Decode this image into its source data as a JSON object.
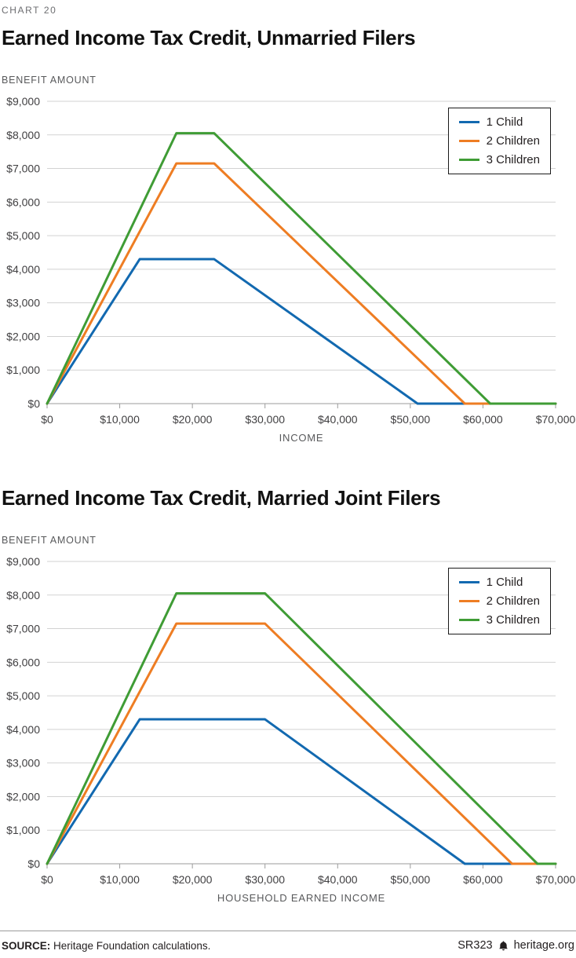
{
  "page": {
    "kicker": "CHART 20",
    "footer": {
      "source_label": "SOURCE:",
      "source_text": "Heritage Foundation calculations.",
      "report_code": "SR323",
      "site": "heritage.org"
    }
  },
  "chart_data": [
    {
      "type": "line",
      "title": "Earned Income Tax Credit, Unmarried Filers",
      "ylabel": "BENEFIT AMOUNT",
      "xlabel": "INCOME",
      "xlim": [
        0,
        70000
      ],
      "ylim": [
        0,
        9000
      ],
      "grid": "horizontal",
      "legend_position": "top-right",
      "x_ticks": [
        0,
        10000,
        20000,
        30000,
        40000,
        50000,
        60000,
        70000
      ],
      "x_tick_labels": [
        "$0",
        "$10,000",
        "$20,000",
        "$30,000",
        "$40,000",
        "$50,000",
        "$60,000",
        "$70,000"
      ],
      "y_ticks": [
        0,
        1000,
        2000,
        3000,
        4000,
        5000,
        6000,
        7000,
        8000,
        9000
      ],
      "y_tick_labels": [
        "$0",
        "$1,000",
        "$2,000",
        "$3,000",
        "$4,000",
        "$5,000",
        "$6,000",
        "$7,000",
        "$8,000",
        "$9,000"
      ],
      "series": [
        {
          "name": "1 Child",
          "color": "#1269b0",
          "points": [
            [
              0,
              0
            ],
            [
              12750,
              4300
            ],
            [
              23000,
              4300
            ],
            [
              51000,
              0
            ],
            [
              70000,
              0
            ]
          ]
        },
        {
          "name": "2 Children",
          "color": "#ee7d23",
          "points": [
            [
              0,
              0
            ],
            [
              17800,
              7150
            ],
            [
              23000,
              7150
            ],
            [
              57500,
              0
            ],
            [
              70000,
              0
            ]
          ]
        },
        {
          "name": "3 Children",
          "color": "#3f9c35",
          "points": [
            [
              0,
              0
            ],
            [
              17800,
              8050
            ],
            [
              23000,
              8050
            ],
            [
              61000,
              0
            ],
            [
              70000,
              0
            ]
          ]
        }
      ]
    },
    {
      "type": "line",
      "title": "Earned Income Tax Credit, Married Joint Filers",
      "ylabel": "BENEFIT AMOUNT",
      "xlabel": "HOUSEHOLD EARNED INCOME",
      "xlim": [
        0,
        70000
      ],
      "ylim": [
        0,
        9000
      ],
      "grid": "horizontal",
      "legend_position": "top-right",
      "x_ticks": [
        0,
        10000,
        20000,
        30000,
        40000,
        50000,
        60000,
        70000
      ],
      "x_tick_labels": [
        "$0",
        "$10,000",
        "$20,000",
        "$30,000",
        "$40,000",
        "$50,000",
        "$60,000",
        "$70,000"
      ],
      "y_ticks": [
        0,
        1000,
        2000,
        3000,
        4000,
        5000,
        6000,
        7000,
        8000,
        9000
      ],
      "y_tick_labels": [
        "$0",
        "$1,000",
        "$2,000",
        "$3,000",
        "$4,000",
        "$5,000",
        "$6,000",
        "$7,000",
        "$8,000",
        "$9,000"
      ],
      "series": [
        {
          "name": "1 Child",
          "color": "#1269b0",
          "points": [
            [
              0,
              0
            ],
            [
              12750,
              4300
            ],
            [
              30000,
              4300
            ],
            [
              57500,
              0
            ],
            [
              70000,
              0
            ]
          ]
        },
        {
          "name": "2 Children",
          "color": "#ee7d23",
          "points": [
            [
              0,
              0
            ],
            [
              17800,
              7150
            ],
            [
              30000,
              7150
            ],
            [
              64000,
              0
            ],
            [
              70000,
              0
            ]
          ]
        },
        {
          "name": "3 Children",
          "color": "#3f9c35",
          "points": [
            [
              0,
              0
            ],
            [
              17800,
              8050
            ],
            [
              30000,
              8050
            ],
            [
              67500,
              0
            ],
            [
              70000,
              0
            ]
          ]
        }
      ]
    }
  ]
}
